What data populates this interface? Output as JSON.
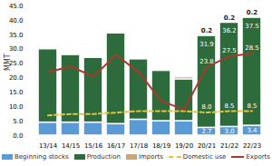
{
  "chart_data": {
    "type": "bar",
    "stacked": true,
    "ylabel": "MMT",
    "categories": [
      "13/14",
      "14/15",
      "15/16",
      "16/17",
      "17/18",
      "18/19",
      "19/20",
      "20/21",
      "21/22",
      "22/23"
    ],
    "ylim": [
      0,
      45
    ],
    "yticks": [
      {
        "value": 0,
        "label": "0.0"
      },
      {
        "value": 5,
        "label": "5.0"
      },
      {
        "value": 10,
        "label": "10.0"
      },
      {
        "value": 15,
        "label": "15.0"
      },
      {
        "value": 20,
        "label": "20.0"
      },
      {
        "value": 25,
        "label": "25.0"
      },
      {
        "value": 30,
        "label": "30.0"
      },
      {
        "value": 35,
        "label": "35.0"
      },
      {
        "value": 40,
        "label": "40.0"
      },
      {
        "value": 45,
        "label": "45.0"
      }
    ],
    "grid": false,
    "legend": "bottom",
    "series": [
      {
        "name": "Beginning stocks",
        "type": "bar",
        "color": "#5b9bd5",
        "values": [
          4.5,
          4.5,
          4.5,
          4.0,
          5.5,
          5.0,
          5.0,
          2.7,
          3.0,
          3.4
        ],
        "value_labels": [
          null,
          null,
          null,
          null,
          null,
          null,
          null,
          "2.7",
          "3.0",
          "3.4"
        ]
      },
      {
        "name": "Production",
        "type": "bar",
        "color": "#2e6b3c",
        "values": [
          25.5,
          23.5,
          22.5,
          31.5,
          21.0,
          17.5,
          14.5,
          31.9,
          36.2,
          37.5
        ],
        "value_labels": [
          null,
          null,
          null,
          null,
          null,
          null,
          null,
          "31.9",
          "36.2",
          "37.5"
        ]
      },
      {
        "name": "Imports",
        "type": "bar",
        "color": "#c9a57a",
        "values": [
          0.2,
          0.3,
          0.2,
          0.3,
          0.3,
          0.2,
          0.8,
          0.2,
          0.2,
          0.2
        ],
        "value_labels": [
          null,
          null,
          null,
          null,
          null,
          null,
          null,
          "0.2",
          "0.2",
          "0.2"
        ]
      },
      {
        "name": "Domestic use",
        "type": "line",
        "color": "#e0c341",
        "line_style": "dashed",
        "values": [
          7.0,
          7.5,
          7.5,
          8.0,
          8.5,
          8.5,
          8.5,
          8.0,
          8.5,
          8.5
        ],
        "value_labels": [
          null,
          null,
          null,
          null,
          null,
          null,
          null,
          "8.0",
          "8.5",
          "8.5"
        ]
      },
      {
        "name": "Exports",
        "type": "line",
        "color": "#a8392b",
        "line_style": "solid",
        "values": [
          22.0,
          24.0,
          20.5,
          28.0,
          22.0,
          12.0,
          9.0,
          23.8,
          27.5,
          28.5
        ],
        "value_labels": [
          null,
          null,
          null,
          null,
          null,
          null,
          null,
          "23.8",
          "27.5",
          "28.5"
        ]
      }
    ]
  }
}
